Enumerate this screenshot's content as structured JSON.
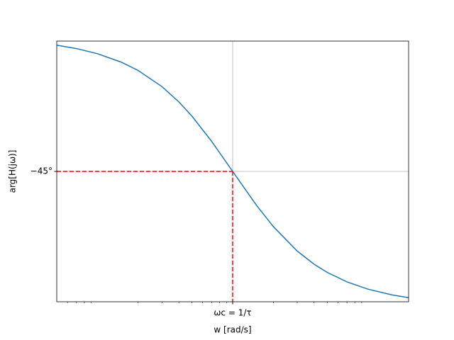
{
  "chart_data": {
    "type": "line",
    "log_x": true,
    "xlabel": "w [rad/s]",
    "ylabel": "arg[H(jω)]",
    "x": [
      0.05,
      0.07,
      0.1,
      0.15,
      0.2,
      0.3,
      0.4,
      0.5,
      0.7,
      1,
      1.5,
      2,
      3,
      4,
      5,
      7,
      10,
      15,
      20
    ],
    "series": [
      {
        "color": "#1f77b4",
        "values": [
          -2.86,
          -4.0,
          -5.71,
          -8.53,
          -11.31,
          -16.7,
          -21.8,
          -26.57,
          -34.99,
          -45,
          -56.31,
          -63.43,
          -71.57,
          -75.96,
          -78.69,
          -81.87,
          -84.29,
          -86.19,
          -87.14
        ]
      }
    ],
    "xlim": [
      0.05,
      20
    ],
    "ylim": [
      -88.5,
      -1.5
    ],
    "xticks": [
      {
        "value": 1,
        "label": "ωc = 1/τ"
      }
    ],
    "xminorticks": [
      0.06,
      0.07,
      0.08,
      0.09,
      0.2,
      0.3,
      0.4,
      0.5,
      0.6,
      0.7,
      0.8,
      0.9,
      2,
      3,
      4,
      5,
      6,
      7,
      8,
      9
    ],
    "yticks": [
      {
        "value": -45,
        "label": "−45°"
      }
    ],
    "grid": true,
    "crosshair": {
      "x": 1,
      "y": -45,
      "color": "#ff0000"
    }
  }
}
